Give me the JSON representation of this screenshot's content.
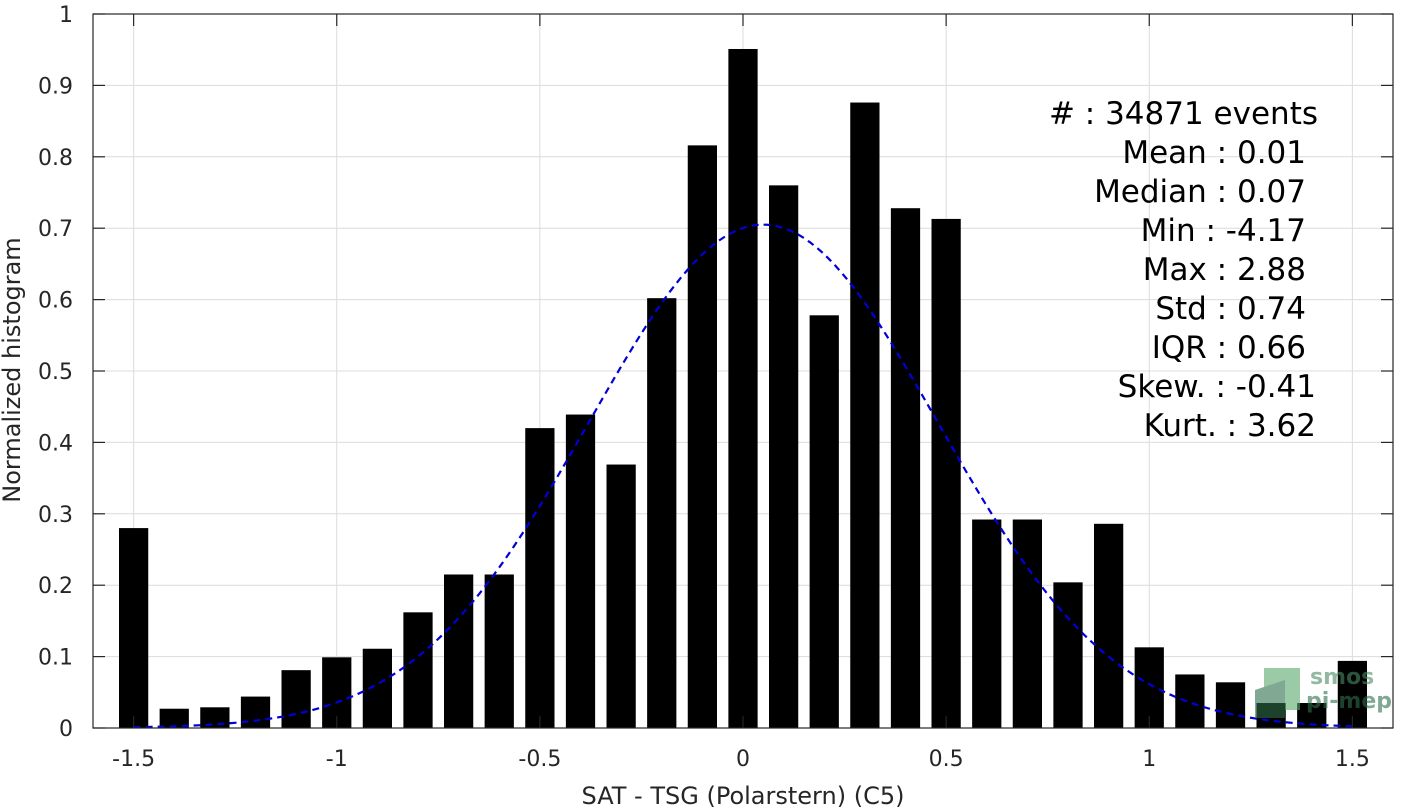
{
  "chart_data": {
    "type": "bar",
    "xlabel": "SAT - TSG (Polarstern) (C5)",
    "ylabel": "Normalized histogram",
    "xlim": [
      -1.6,
      1.6
    ],
    "ylim": [
      0,
      1
    ],
    "grid": true,
    "x": [
      -1.5,
      -1.4,
      -1.3,
      -1.2,
      -1.1,
      -1.0,
      -0.9,
      -0.8,
      -0.7,
      -0.6,
      -0.5,
      -0.4,
      -0.3,
      -0.2,
      -0.1,
      0.0,
      0.1,
      0.2,
      0.3,
      0.4,
      0.5,
      0.6,
      0.7,
      0.8,
      0.9,
      1.0,
      1.1,
      1.2,
      1.3,
      1.4,
      1.5
    ],
    "values": [
      0.28,
      0.027,
      0.029,
      0.044,
      0.081,
      0.099,
      0.111,
      0.162,
      0.215,
      0.215,
      0.42,
      0.439,
      0.369,
      0.602,
      0.816,
      0.951,
      0.76,
      0.578,
      0.876,
      0.728,
      0.713,
      0.292,
      0.292,
      0.204,
      0.286,
      0.113,
      0.075,
      0.064,
      0.035,
      0.035,
      0.094
    ],
    "x_ticks": [
      -1.5,
      -1,
      -0.5,
      0,
      0.5,
      1,
      1.5
    ],
    "x_tick_labels": [
      "-1.5",
      "-1",
      "-0.5",
      "0",
      "0.5",
      "1",
      "1.5"
    ],
    "y_ticks": [
      0,
      0.1,
      0.2,
      0.3,
      0.4,
      0.5,
      0.6,
      0.7,
      0.8,
      0.9,
      1
    ],
    "y_tick_labels": [
      "0",
      "0.1",
      "0.2",
      "0.3",
      "0.4",
      "0.5",
      "0.6",
      "0.7",
      "0.8",
      "0.9",
      "1"
    ],
    "fit_curve": {
      "type": "gaussian",
      "mean": 0.05,
      "peak": 0.705,
      "sigma": 0.43,
      "x_range": [
        -1.5,
        1.5
      ],
      "style": "dashed",
      "color": "#0000d8"
    },
    "bar_color": "#000000",
    "annotations": [
      "#  : 34871 events",
      "Mean : 0.01",
      "Median : 0.07",
      "Min : -4.17",
      "Max : 2.88",
      "Std : 0.74",
      "IQR : 0.66",
      "Skew. : -0.41",
      "Kurt. : 3.62"
    ]
  },
  "logo": {
    "line1": "smos",
    "line2": "pi-mep"
  }
}
